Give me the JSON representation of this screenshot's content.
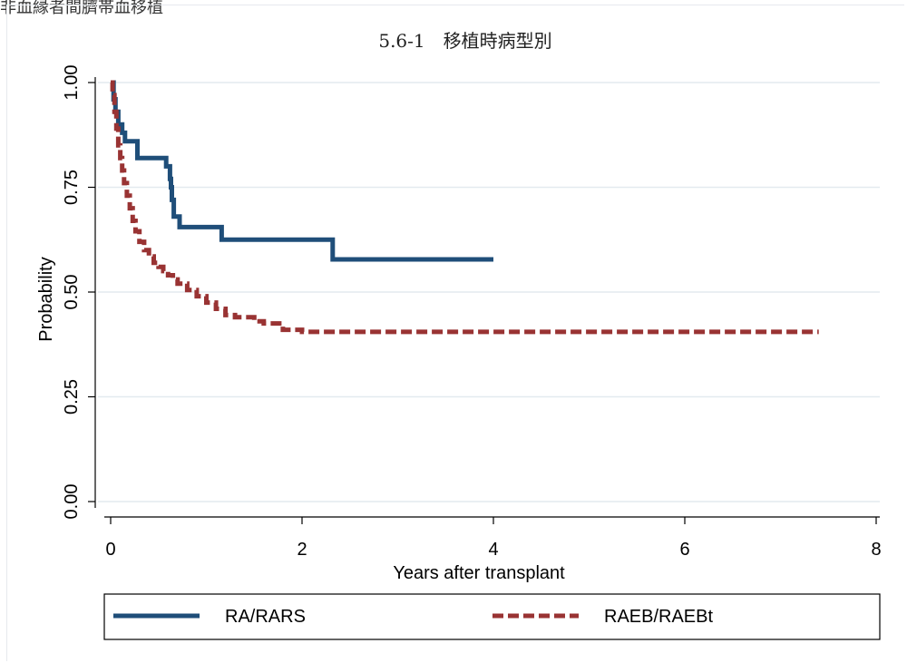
{
  "header": {
    "text": "非血縁者間臍帯血移植"
  },
  "chart_data": {
    "type": "line",
    "subtype": "kaplan-meier-step",
    "title": "5.6-1　移植時病型別",
    "xlabel": "Years after transplant",
    "ylabel": "Probability",
    "xlim": [
      0,
      8
    ],
    "ylim": [
      0,
      1
    ],
    "xticks": [
      0,
      2,
      4,
      6,
      8
    ],
    "yticks": [
      0.0,
      0.25,
      0.5,
      0.75,
      1.0
    ],
    "xtick_labels": [
      "0",
      "2",
      "4",
      "6",
      "8"
    ],
    "ytick_labels": [
      "0.00",
      "0.25",
      "0.50",
      "0.75",
      "1.00"
    ],
    "grid": "horizontal",
    "legend_position": "bottom",
    "series": [
      {
        "name": "RA/RARS",
        "color": "#1f4e79",
        "dash": "solid",
        "x": [
          0,
          0.03,
          0.05,
          0.08,
          0.12,
          0.15,
          0.27,
          0.28,
          0.55,
          0.58,
          0.62,
          0.63,
          0.64,
          0.66,
          0.7,
          0.72,
          1.15,
          1.16,
          2.3,
          2.32,
          4.0
        ],
        "y": [
          1.0,
          0.96,
          0.93,
          0.9,
          0.88,
          0.86,
          0.86,
          0.82,
          0.82,
          0.8,
          0.77,
          0.75,
          0.72,
          0.68,
          0.68,
          0.655,
          0.655,
          0.625,
          0.625,
          0.578,
          0.578
        ]
      },
      {
        "name": "RAEB/RAEBt",
        "color": "#993333",
        "dash": "dashed",
        "x": [
          0,
          0.02,
          0.04,
          0.06,
          0.08,
          0.1,
          0.12,
          0.14,
          0.17,
          0.2,
          0.23,
          0.26,
          0.3,
          0.35,
          0.4,
          0.45,
          0.5,
          0.55,
          0.6,
          0.65,
          0.7,
          0.8,
          0.9,
          1.0,
          1.1,
          1.2,
          1.3,
          1.5,
          1.6,
          1.8,
          2.0,
          3.0,
          5.0,
          7.4
        ],
        "y": [
          1.0,
          0.97,
          0.93,
          0.89,
          0.85,
          0.82,
          0.79,
          0.76,
          0.73,
          0.7,
          0.67,
          0.645,
          0.62,
          0.6,
          0.585,
          0.57,
          0.56,
          0.55,
          0.54,
          0.53,
          0.52,
          0.505,
          0.49,
          0.475,
          0.46,
          0.445,
          0.44,
          0.43,
          0.425,
          0.41,
          0.405,
          0.405,
          0.405,
          0.405
        ]
      }
    ]
  }
}
